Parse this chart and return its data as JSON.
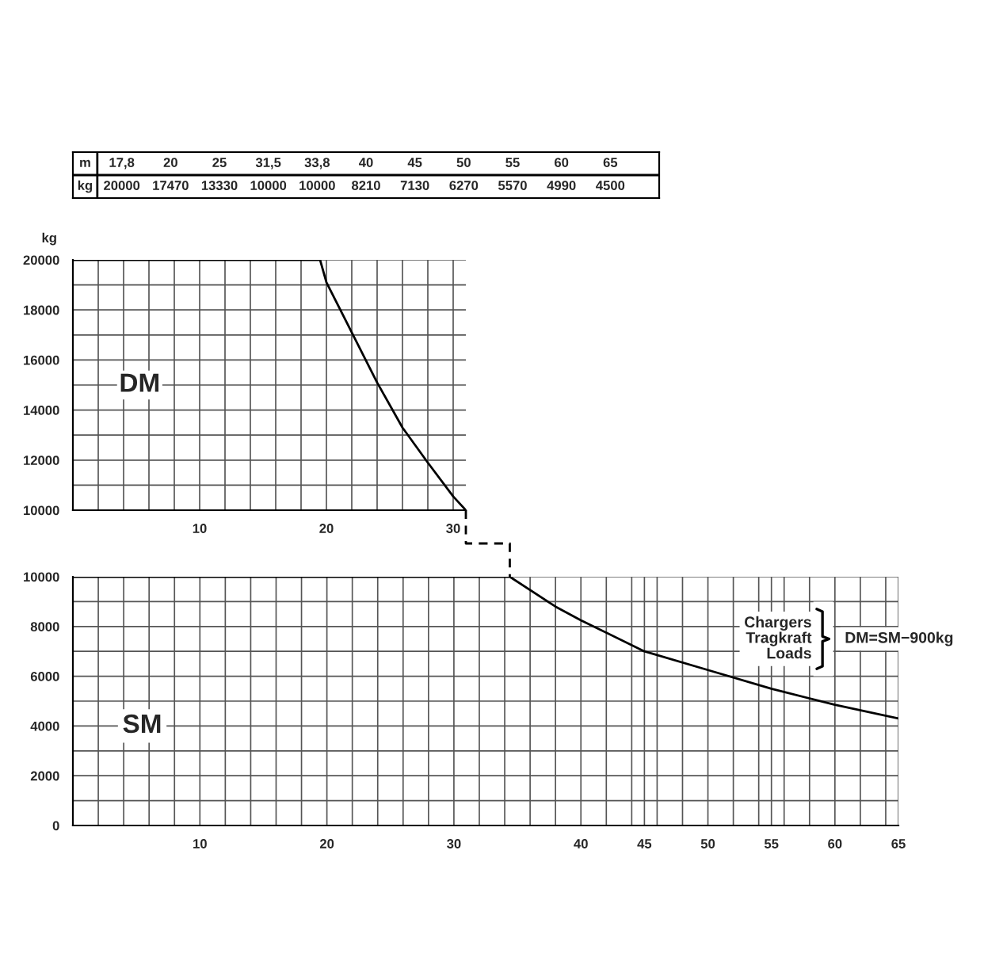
{
  "chart_data": [
    {
      "type": "other",
      "xlabel": "m",
      "ylabel": "kg",
      "data_labels": true,
      "categories": [
        "17,8",
        "20",
        "25",
        "31,5",
        "33,8",
        "40",
        "45",
        "50",
        "55",
        "60",
        "65"
      ],
      "values": [
        20000,
        17470,
        13330,
        10000,
        10000,
        8210,
        7130,
        6270,
        5570,
        4990,
        4500
      ]
    },
    {
      "type": "line",
      "ylabel": "kg",
      "annotations": [
        "DM"
      ],
      "grid": true,
      "tick_labels": true,
      "series": [
        {
          "color": "#000000",
          "x": [
            0,
            19.5,
            20,
            22,
            24,
            26,
            28,
            30,
            31
          ],
          "values": [
            20000,
            20000,
            19100,
            17100,
            15100,
            13300,
            11900,
            10550,
            10000
          ]
        }
      ],
      "xlim": [
        0,
        31
      ],
      "ylim": [
        10000,
        20000
      ],
      "xticks": [
        {
          "value": 2,
          "label": null
        },
        {
          "value": 4,
          "label": null
        },
        {
          "value": 6,
          "label": null
        },
        {
          "value": 8,
          "label": null
        },
        10,
        {
          "value": 12,
          "label": null
        },
        {
          "value": 14,
          "label": null
        },
        {
          "value": 16,
          "label": null
        },
        {
          "value": 18,
          "label": null
        },
        20,
        {
          "value": 22,
          "label": null
        },
        {
          "value": 24,
          "label": null
        },
        {
          "value": 26,
          "label": null
        },
        {
          "value": 28,
          "label": null
        },
        30
      ],
      "yticks": [
        10000,
        {
          "value": 11000,
          "label": null
        },
        12000,
        {
          "value": 13000,
          "label": null
        },
        14000,
        {
          "value": 15000,
          "label": null
        },
        16000,
        {
          "value": 17000,
          "label": null
        },
        18000,
        {
          "value": 19000,
          "label": null
        },
        20000
      ]
    },
    {
      "type": "line",
      "annotations": [
        "SM",
        "Chargers\nTragkraft\nLoads",
        "DM=SM−900kg"
      ],
      "grid": true,
      "series": [
        {
          "color": "#000000",
          "x": [
            0,
            34.4,
            38,
            40,
            45,
            50,
            55,
            60,
            65
          ],
          "values": [
            10000,
            10000,
            8800,
            8250,
            7000,
            6250,
            5500,
            4850,
            4300
          ]
        }
      ],
      "xlim": [
        0,
        65
      ],
      "ylim": [
        0,
        10000
      ],
      "xticks": [
        {
          "value": 2,
          "label": null
        },
        {
          "value": 4,
          "label": null
        },
        {
          "value": 6,
          "label": null
        },
        {
          "value": 8,
          "label": null
        },
        10,
        {
          "value": 12,
          "label": null
        },
        {
          "value": 14,
          "label": null
        },
        {
          "value": 16,
          "label": null
        },
        {
          "value": 18,
          "label": null
        },
        20,
        {
          "value": 22,
          "label": null
        },
        {
          "value": 24,
          "label": null
        },
        {
          "value": 26,
          "label": null
        },
        {
          "value": 28,
          "label": null
        },
        30,
        {
          "value": 32,
          "label": null
        },
        {
          "value": 34,
          "label": null
        },
        {
          "value": 36,
          "label": null
        },
        {
          "value": 38,
          "label": null
        },
        40,
        {
          "value": 42,
          "label": null
        },
        {
          "value": 44,
          "label": null
        },
        45,
        {
          "value": 46,
          "label": null
        },
        {
          "value": 48,
          "label": null
        },
        50,
        {
          "value": 52,
          "label": null
        },
        {
          "value": 54,
          "label": null
        },
        55,
        {
          "value": 56,
          "label": null
        },
        {
          "value": 58,
          "label": null
        },
        60,
        {
          "value": 62,
          "label": null
        },
        {
          "value": 64,
          "label": null
        },
        65
      ],
      "yticks": [
        0,
        {
          "value": 1000,
          "label": null
        },
        2000,
        {
          "value": 3000,
          "label": null
        },
        4000,
        {
          "value": 5000,
          "label": null
        },
        6000,
        {
          "value": 7000,
          "label": null
        },
        8000,
        {
          "value": 9000,
          "label": null
        },
        10000
      ]
    }
  ]
}
